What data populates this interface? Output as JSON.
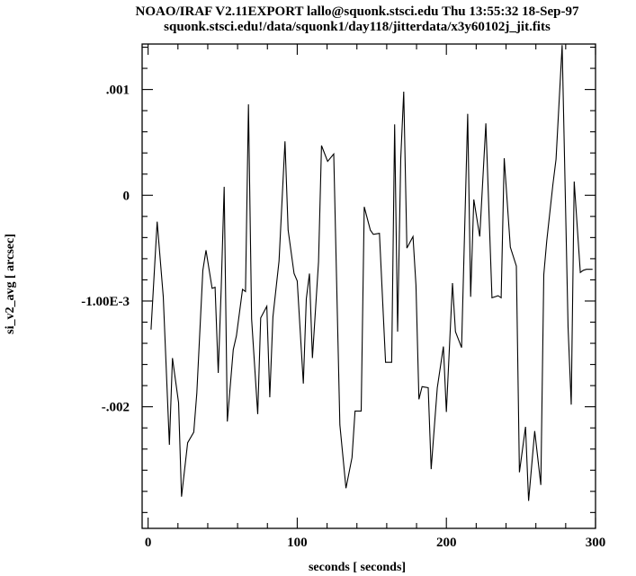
{
  "header": {
    "title_line1": "NOAO/IRAF V2.11EXPORT lallo@squonk.stsci.edu Thu 13:55:32 18-Sep-97",
    "title_line2": "squonk.stsci.edu!/data/squonk1/day118/jitterdata/x3y60102j_jit.fits"
  },
  "colors": {
    "background": "#ffffff",
    "line": "#000000",
    "axes": "#000000"
  },
  "chart_data": {
    "type": "line",
    "title": "NOAO/IRAF V2.11EXPORT lallo@squonk.stsci.edu Thu 13:55:32 18-Sep-97",
    "subtitle": "squonk.stsci.edu!/data/squonk1/day118/jitterdata/x3y60102j_jit.fits",
    "xlabel": "seconds [    seconds]",
    "ylabel": "si_v2_avg [    arcsec]",
    "xlim": [
      -4,
      300
    ],
    "ylim": [
      -0.00315,
      0.00143
    ],
    "grid": false,
    "x_ticks": [
      {
        "value": 0,
        "label": "0"
      },
      {
        "value": 100,
        "label": "100"
      },
      {
        "value": 200,
        "label": "200"
      },
      {
        "value": 300,
        "label": "300"
      }
    ],
    "y_ticks": [
      {
        "value": 0.001,
        "label": ".001"
      },
      {
        "value": 0,
        "label": "0"
      },
      {
        "value": -0.001,
        "label": "-1.00E-3"
      },
      {
        "value": -0.002,
        "label": "-.002"
      }
    ],
    "x_minor_step": 20,
    "y_minor_step": 0.0002,
    "series": [
      {
        "x": [
          2.0,
          6.1,
          10.2,
          14.3,
          16.3,
          20.4,
          22.4,
          26.5,
          30.6,
          32.7,
          36.7,
          38.8,
          42.9,
          44.9,
          47.0,
          49.0,
          51.0,
          53.1,
          57.1,
          59.2,
          63.3,
          65.3,
          67.3,
          69.4,
          73.5,
          75.5,
          79.6,
          81.6,
          83.7,
          87.8,
          91.8,
          93.9,
          97.9,
          100.0,
          104.1,
          106.1,
          108.2,
          110.2,
          114.3,
          116.3,
          120.4,
          124.5,
          128.6,
          132.7,
          136.7,
          138.8,
          142.9,
          144.9,
          149.0,
          151.0,
          155.1,
          159.2,
          163.3,
          165.3,
          167.3,
          169.4,
          171.4,
          173.5,
          177.6,
          179.6,
          181.6,
          183.7,
          187.8,
          189.8,
          193.9,
          198.0,
          200.0,
          204.1,
          206.1,
          210.2,
          214.3,
          216.3,
          218.4,
          222.4,
          226.5,
          230.6,
          234.7,
          236.7,
          238.8,
          242.9,
          246.9,
          249.0,
          253.1,
          255.1,
          259.2,
          263.3,
          265.3,
          267.3,
          271.4,
          273.5,
          277.6,
          281.6,
          283.7,
          285.7,
          289.8,
          291.8,
          293.9,
          295.9,
          298.0
        ],
        "y": [
          -0.00127,
          -0.00025,
          -0.00096,
          -0.00236,
          -0.00154,
          -0.00196,
          -0.00285,
          -0.00234,
          -0.00224,
          -0.00187,
          -0.00071,
          -0.00052,
          -0.00088,
          -0.00087,
          -0.00168,
          -0.00088,
          8e-05,
          -0.00214,
          -0.00146,
          -0.00133,
          -0.00089,
          -0.00091,
          0.00086,
          -0.00117,
          -0.00207,
          -0.00116,
          -0.00105,
          -0.00191,
          -0.00115,
          -0.00062,
          0.00051,
          -0.00033,
          -0.00074,
          -0.00081,
          -0.00178,
          -0.00098,
          -0.00074,
          -0.00154,
          -0.00063,
          0.00047,
          0.00032,
          0.00039,
          -0.00217,
          -0.00277,
          -0.00248,
          -0.00204,
          -0.00204,
          -0.00011,
          -0.00033,
          -0.00037,
          -0.00036,
          -0.00158,
          -0.00158,
          0.00067,
          -0.00129,
          0.00035,
          0.00098,
          -0.0005,
          -0.00039,
          -0.00085,
          -0.00193,
          -0.00181,
          -0.00182,
          -0.00259,
          -0.00182,
          -0.00143,
          -0.00205,
          -0.00083,
          -0.00129,
          -0.00144,
          0.00077,
          -0.00096,
          -4e-05,
          -0.00039,
          0.00068,
          -0.00097,
          -0.00095,
          -0.00097,
          0.00035,
          -0.00049,
          -0.00067,
          -0.00262,
          -0.00219,
          -0.00289,
          -0.00223,
          -0.00274,
          -0.00075,
          -0.00043,
          0.0001,
          0.00034,
          0.00142,
          -0.00125,
          -0.00198,
          0.00013,
          -0.00073,
          -0.00071,
          -0.0007,
          -0.0007,
          -0.0007
        ]
      }
    ]
  }
}
